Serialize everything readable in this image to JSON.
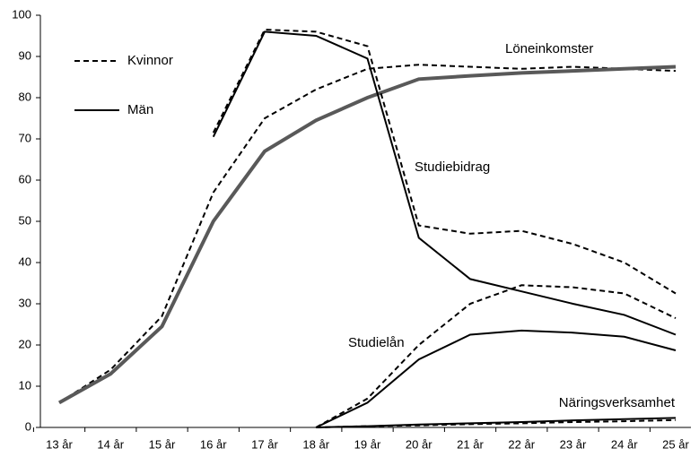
{
  "chart_data": {
    "type": "line",
    "categories": [
      "13 år",
      "14 år",
      "15 år",
      "16 år",
      "17 år",
      "18 år",
      "19 år",
      "20 år",
      "21 år",
      "22 år",
      "23 år",
      "24 år",
      "25 år"
    ],
    "ylim": [
      0,
      100
    ],
    "yticks": [
      0,
      10,
      20,
      30,
      40,
      50,
      60,
      70,
      80,
      90,
      100
    ],
    "legend": [
      {
        "name": "Kvinnor",
        "dash": "6,4"
      },
      {
        "name": "Män",
        "dash": "none"
      }
    ],
    "groups": [
      {
        "label": "Löneinkomster",
        "colors": [
          "#000000",
          "#595959"
        ],
        "lines": [
          [
            6,
            14,
            27,
            57,
            75,
            82,
            87,
            88,
            87.5,
            87,
            87.5,
            87,
            86.5
          ],
          [
            6,
            13,
            24.5,
            50,
            67,
            74.5,
            80,
            84.5,
            85.3,
            86,
            86.5,
            87,
            87.5
          ]
        ]
      },
      {
        "label": "Studiebidrag",
        "colors": [
          "#000000",
          "#000000"
        ],
        "lines": [
          [
            null,
            null,
            null,
            71.5,
            96.5,
            96,
            92.5,
            49,
            47,
            47.7,
            44.5,
            40,
            32.5
          ],
          [
            null,
            null,
            null,
            70.5,
            96,
            95,
            89.5,
            46,
            36,
            33,
            30,
            27.3,
            22.5
          ]
        ]
      },
      {
        "label": "Studielån",
        "colors": [
          "#000000",
          "#000000"
        ],
        "lines": [
          [
            null,
            null,
            null,
            null,
            null,
            0,
            7,
            20,
            30,
            34.5,
            34,
            32.5,
            26.5
          ],
          [
            null,
            null,
            null,
            null,
            null,
            0,
            6,
            16.5,
            22.5,
            23.5,
            23,
            22,
            18.7
          ]
        ]
      },
      {
        "label": "Näringsverksamhet",
        "colors": [
          "#000000",
          "#000000"
        ],
        "lines": [
          [
            null,
            null,
            null,
            null,
            null,
            0,
            0.3,
            0.5,
            0.8,
            1,
            1.3,
            1.5,
            1.8
          ],
          [
            null,
            null,
            null,
            null,
            null,
            0,
            0.3,
            0.7,
            1,
            1.3,
            1.7,
            2,
            2.3
          ]
        ]
      }
    ]
  }
}
